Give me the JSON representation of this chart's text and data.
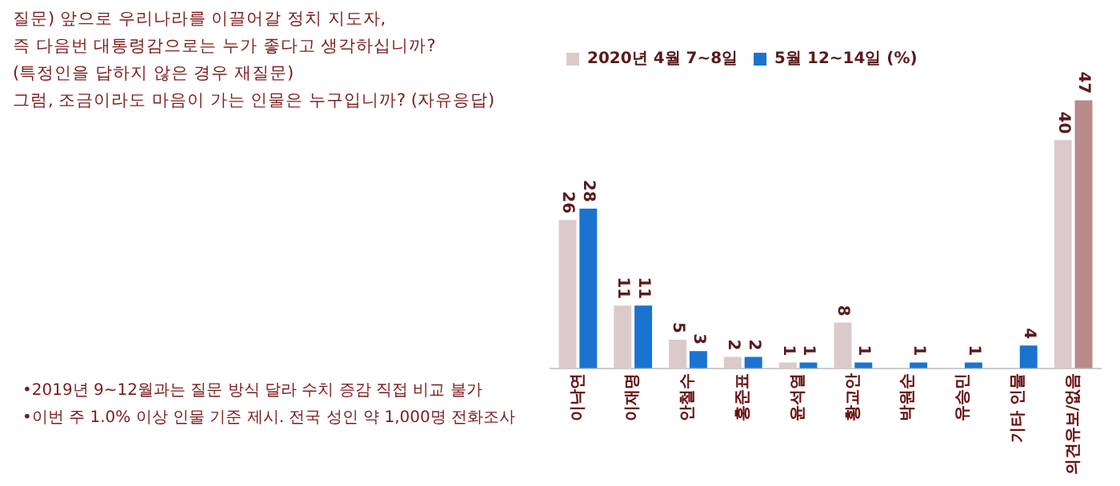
{
  "chart_data": {
    "type": "bar",
    "title": "질문) 앞으로 우리나라를 이끌어갈 정치 지도자,\n즉 다음번 대통령감으로는 누가 좋다고 생각하십니까?\n(특정인을 답하지 않은 경우 재질문)\n그럼, 조금이라도 마음이 가는 인물은 누구입니까? (자유응답)",
    "categories": [
      "이낙연",
      "이재명",
      "안철수",
      "홍준표",
      "윤석열",
      "황교안",
      "박원순",
      "유승민",
      "기타 인물",
      "의견유보/없음"
    ],
    "series": [
      {
        "name": "2020년 4월 7~8일",
        "color": "#dccaca",
        "values": [
          26,
          11,
          5,
          2,
          1,
          8,
          null,
          null,
          null,
          40
        ]
      },
      {
        "name": "5월 12~14일 (%)",
        "color": "#1a73d0",
        "colors": [
          "#1a73d0",
          "#1a73d0",
          "#1a73d0",
          "#1a73d0",
          "#1a73d0",
          "#1a73d0",
          "#1a73d0",
          "#1a73d0",
          "#1a73d0",
          "#b88a8a"
        ],
        "values": [
          28,
          11,
          3,
          2,
          1,
          1,
          1,
          1,
          4,
          47
        ]
      }
    ],
    "data_labels": true,
    "legend": "top left",
    "grid": false,
    "annotations": [
      "•2019년 9~12월과는 질문 방식 달라 수치 증감 직접 비교 불가",
      "•이번 주 1.0% 이상 인물 기준 제시. 전국 성인 약 1,000명 전화조사"
    ]
  }
}
